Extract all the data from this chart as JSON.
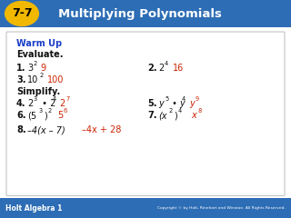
{
  "header_bg": "#2D6DB5",
  "header_text": "Multiplying Polynomials",
  "header_num": "7-7",
  "header_num_bg": "#F0B800",
  "footer_bg": "#2D6DB5",
  "footer_left": "Holt Algebra 1",
  "footer_right": "Copyright © by Holt, Rinehart and Winston. All Rights Reserved.",
  "body_bg": "#FFFFFF",
  "warm_up_color": "#1A3EC8",
  "answer_color": "#CC2200",
  "black": "#111111"
}
